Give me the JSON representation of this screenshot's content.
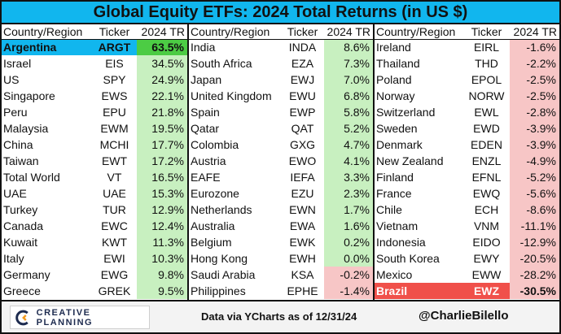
{
  "title": "Global Equity ETFs: 2024 Total Returns (in US $)",
  "headers": {
    "country": "Country/Region",
    "ticker": "Ticker",
    "return": "2024 TR"
  },
  "colors": {
    "title_bg": "#11b6ee",
    "positive": "#c8f0c0",
    "negative": "#f7c6c6",
    "best_return": "#4ccc44",
    "worst_row": "#f0504a"
  },
  "columns": [
    {
      "rows": [
        {
          "country": "Argentina",
          "ticker": "ARGT",
          "return": "63.5%",
          "style": "best"
        },
        {
          "country": "Israel",
          "ticker": "EIS",
          "return": "34.5%",
          "style": "pos"
        },
        {
          "country": "US",
          "ticker": "SPY",
          "return": "24.9%",
          "style": "pos"
        },
        {
          "country": "Singapore",
          "ticker": "EWS",
          "return": "22.1%",
          "style": "pos"
        },
        {
          "country": "Peru",
          "ticker": "EPU",
          "return": "21.8%",
          "style": "pos"
        },
        {
          "country": "Malaysia",
          "ticker": "EWM",
          "return": "19.5%",
          "style": "pos"
        },
        {
          "country": "China",
          "ticker": "MCHI",
          "return": "17.7%",
          "style": "pos"
        },
        {
          "country": "Taiwan",
          "ticker": "EWT",
          "return": "17.2%",
          "style": "pos"
        },
        {
          "country": "Total World",
          "ticker": "VT",
          "return": "16.5%",
          "style": "pos"
        },
        {
          "country": "UAE",
          "ticker": "UAE",
          "return": "15.3%",
          "style": "pos"
        },
        {
          "country": "Turkey",
          "ticker": "TUR",
          "return": "12.9%",
          "style": "pos"
        },
        {
          "country": "Canada",
          "ticker": "EWC",
          "return": "12.4%",
          "style": "pos"
        },
        {
          "country": "Kuwait",
          "ticker": "KWT",
          "return": "11.3%",
          "style": "pos"
        },
        {
          "country": "Italy",
          "ticker": "EWI",
          "return": "10.3%",
          "style": "pos"
        },
        {
          "country": "Germany",
          "ticker": "EWG",
          "return": "9.8%",
          "style": "pos"
        },
        {
          "country": "Greece",
          "ticker": "GREK",
          "return": "9.5%",
          "style": "pos"
        }
      ]
    },
    {
      "rows": [
        {
          "country": "India",
          "ticker": "INDA",
          "return": "8.6%",
          "style": "pos"
        },
        {
          "country": "South Africa",
          "ticker": "EZA",
          "return": "7.3%",
          "style": "pos"
        },
        {
          "country": "Japan",
          "ticker": "EWJ",
          "return": "7.0%",
          "style": "pos"
        },
        {
          "country": "United Kingdom",
          "ticker": "EWU",
          "return": "6.8%",
          "style": "pos"
        },
        {
          "country": "Spain",
          "ticker": "EWP",
          "return": "5.8%",
          "style": "pos"
        },
        {
          "country": "Qatar",
          "ticker": "QAT",
          "return": "5.2%",
          "style": "pos"
        },
        {
          "country": "Colombia",
          "ticker": "GXG",
          "return": "4.7%",
          "style": "pos"
        },
        {
          "country": "Austria",
          "ticker": "EWO",
          "return": "4.1%",
          "style": "pos"
        },
        {
          "country": "EAFE",
          "ticker": "IEFA",
          "return": "3.3%",
          "style": "pos"
        },
        {
          "country": "Eurozone",
          "ticker": "EZU",
          "return": "2.3%",
          "style": "pos"
        },
        {
          "country": "Netherlands",
          "ticker": "EWN",
          "return": "1.7%",
          "style": "pos"
        },
        {
          "country": "Australia",
          "ticker": "EWA",
          "return": "1.6%",
          "style": "pos"
        },
        {
          "country": "Belgium",
          "ticker": "EWK",
          "return": "0.2%",
          "style": "pos"
        },
        {
          "country": "Hong Kong",
          "ticker": "EWH",
          "return": "0.0%",
          "style": "pos"
        },
        {
          "country": "Saudi Arabia",
          "ticker": "KSA",
          "return": "-0.2%",
          "style": "neg"
        },
        {
          "country": "Philippines",
          "ticker": "EPHE",
          "return": "-1.4%",
          "style": "neg"
        }
      ]
    },
    {
      "rows": [
        {
          "country": "Ireland",
          "ticker": "EIRL",
          "return": "-1.6%",
          "style": "neg"
        },
        {
          "country": "Thailand",
          "ticker": "THD",
          "return": "-2.2%",
          "style": "neg"
        },
        {
          "country": "Poland",
          "ticker": "EPOL",
          "return": "-2.5%",
          "style": "neg"
        },
        {
          "country": "Norway",
          "ticker": "NORW",
          "return": "-2.5%",
          "style": "neg"
        },
        {
          "country": "Switzerland",
          "ticker": "EWL",
          "return": "-2.8%",
          "style": "neg"
        },
        {
          "country": "Sweden",
          "ticker": "EWD",
          "return": "-3.9%",
          "style": "neg"
        },
        {
          "country": "Denmark",
          "ticker": "EDEN",
          "return": "-3.9%",
          "style": "neg"
        },
        {
          "country": "New Zealand",
          "ticker": "ENZL",
          "return": "-4.9%",
          "style": "neg"
        },
        {
          "country": "Finland",
          "ticker": "EFNL",
          "return": "-5.2%",
          "style": "neg"
        },
        {
          "country": "France",
          "ticker": "EWQ",
          "return": "-5.6%",
          "style": "neg"
        },
        {
          "country": "Chile",
          "ticker": "ECH",
          "return": "-8.6%",
          "style": "neg"
        },
        {
          "country": "Vietnam",
          "ticker": "VNM",
          "return": "-11.1%",
          "style": "neg"
        },
        {
          "country": "Indonesia",
          "ticker": "EIDO",
          "return": "-12.9%",
          "style": "neg"
        },
        {
          "country": "South Korea",
          "ticker": "EWY",
          "return": "-20.5%",
          "style": "neg"
        },
        {
          "country": "Mexico",
          "ticker": "EWW",
          "return": "-28.2%",
          "style": "neg"
        },
        {
          "country": "Brazil",
          "ticker": "EWZ",
          "return": "-30.5%",
          "style": "worst"
        }
      ]
    }
  ],
  "footer": {
    "logo_text": "CREATIVE PLANNING",
    "logo_icon": "creative-planning-logo-icon",
    "source": "Data via YCharts as of 12/31/24",
    "handle": "@CharlieBilello"
  }
}
